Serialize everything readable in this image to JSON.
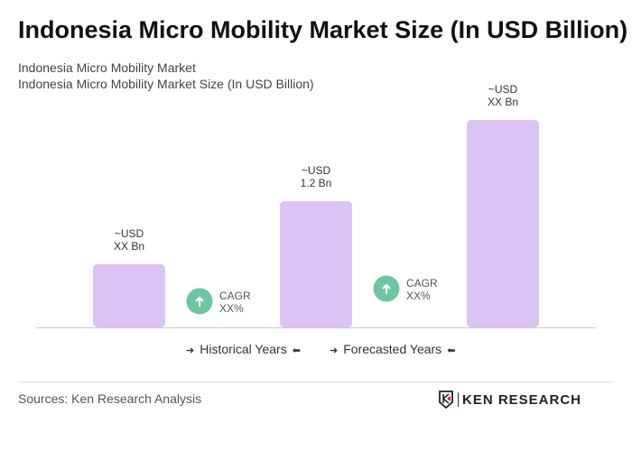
{
  "title": "Indonesia Micro Mobility Market Size (In USD Billion)",
  "subtitle1": "Indonesia Micro Mobility Market",
  "subtitle2": "Indonesia Micro Mobility Market Size (In USD Billion)",
  "chart_data": {
    "type": "bar",
    "categories": [
      "",
      "",
      ""
    ],
    "values": [
      0.6,
      1.2,
      1.97
    ],
    "data_labels": [
      [
        "~USD",
        "XX Bn"
      ],
      [
        "~USD",
        "1.2 Bn"
      ],
      [
        "~USD",
        "XX Bn"
      ]
    ],
    "bar_color": "#dcc3f5",
    "cagr": [
      {
        "label": "CAGR",
        "value": "XX%"
      },
      {
        "label": "CAGR",
        "value": "XX%"
      }
    ],
    "cagr_color": "#6cc6a0",
    "legend": [
      "Historical Years",
      "Forecasted Years"
    ],
    "grid": false
  },
  "footer": {
    "sources": "Sources: Ken Research Analysis",
    "logo": "KEN RESEARCH"
  }
}
